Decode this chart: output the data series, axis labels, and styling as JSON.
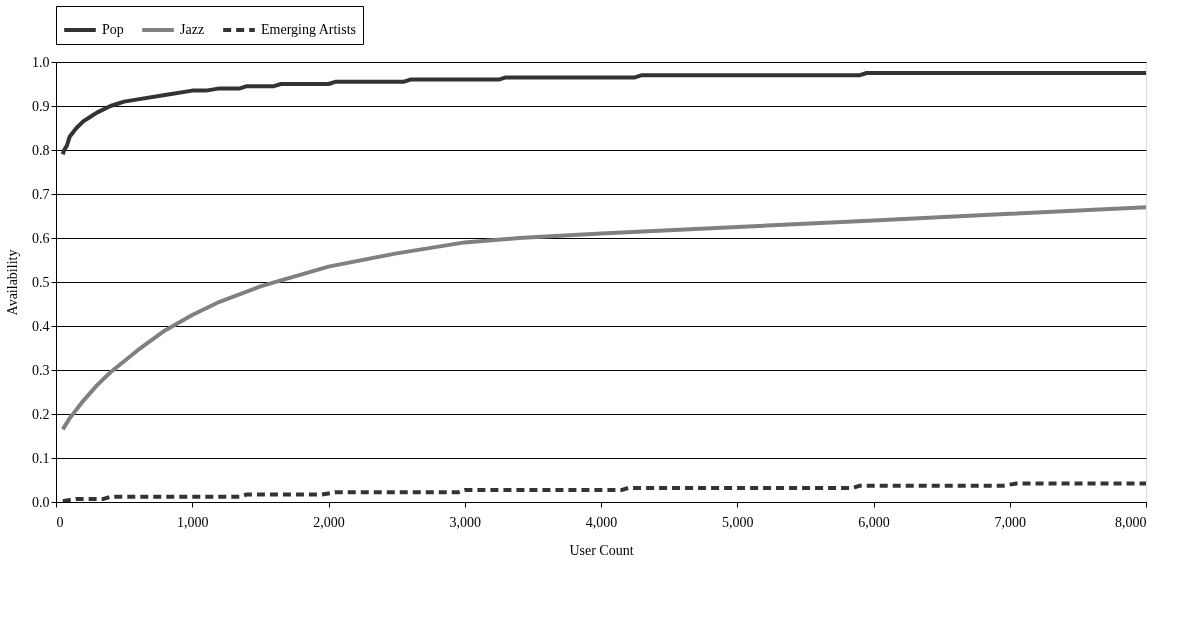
{
  "chart_data": {
    "type": "line",
    "xlabel": "User Count",
    "ylabel": "Availability",
    "legend": "top",
    "grid": "y",
    "marker": "none",
    "xlim": [
      0,
      8000
    ],
    "xticks": [
      0,
      {
        "value": 1000,
        "label": "1,000"
      },
      {
        "value": 2000,
        "label": "2,000"
      },
      {
        "value": 3000,
        "label": "3,000"
      },
      {
        "value": 4000,
        "label": "4,000"
      },
      {
        "value": 5000,
        "label": "5,000"
      },
      {
        "value": 6000,
        "label": "6,000"
      },
      {
        "value": 7000,
        "label": "7,000"
      },
      {
        "value": 8000,
        "label": "8,000"
      }
    ],
    "ylim": [
      0,
      1
    ],
    "yticks": [
      {
        "value": 0,
        "label": "0.0"
      },
      0.1,
      0.2,
      0.3,
      0.4,
      0.5,
      0.6,
      0.7,
      0.8,
      0.9,
      {
        "value": 1,
        "label": "1.0"
      }
    ],
    "series": [
      {
        "name": "Pop",
        "color": "#333333",
        "line_style": "solid",
        "x": [
          50,
          60,
          80,
          100,
          150,
          200,
          250,
          300,
          400,
          500,
          600,
          800,
          1000,
          1100,
          1200,
          1350,
          1400,
          1600,
          1650,
          2000,
          2050,
          2550,
          2600,
          3250,
          3300,
          4250,
          4300,
          5900,
          5950,
          8000
        ],
        "values": [
          0.79,
          0.8,
          0.81,
          0.83,
          0.85,
          0.865,
          0.875,
          0.885,
          0.9,
          0.91,
          0.915,
          0.925,
          0.935,
          0.935,
          0.94,
          0.94,
          0.945,
          0.945,
          0.95,
          0.95,
          0.955,
          0.955,
          0.96,
          0.96,
          0.965,
          0.965,
          0.97,
          0.97,
          0.975,
          0.975
        ]
      },
      {
        "name": "Jazz",
        "color": "#808080",
        "line_style": "solid",
        "x": [
          50,
          100,
          200,
          300,
          400,
          600,
          800,
          1000,
          1200,
          1500,
          2000,
          2500,
          3000,
          3400,
          4000,
          5000,
          6000,
          7000,
          8000
        ],
        "values": [
          0.165,
          0.19,
          0.23,
          0.265,
          0.295,
          0.345,
          0.39,
          0.425,
          0.455,
          0.49,
          0.535,
          0.565,
          0.59,
          0.6,
          0.61,
          0.625,
          0.64,
          0.655,
          0.67
        ]
      },
      {
        "name": "Emerging Artists",
        "color": "#333333",
        "line_style": "dashed",
        "x": [
          50,
          150,
          350,
          400,
          1350,
          1400,
          1950,
          2050,
          2950,
          3000,
          4150,
          4200,
          5850,
          5900,
          6950,
          7050,
          8000
        ],
        "values": [
          0.002,
          0.007,
          0.007,
          0.012,
          0.012,
          0.017,
          0.017,
          0.022,
          0.022,
          0.027,
          0.027,
          0.032,
          0.032,
          0.037,
          0.037,
          0.042,
          0.042
        ]
      }
    ]
  }
}
